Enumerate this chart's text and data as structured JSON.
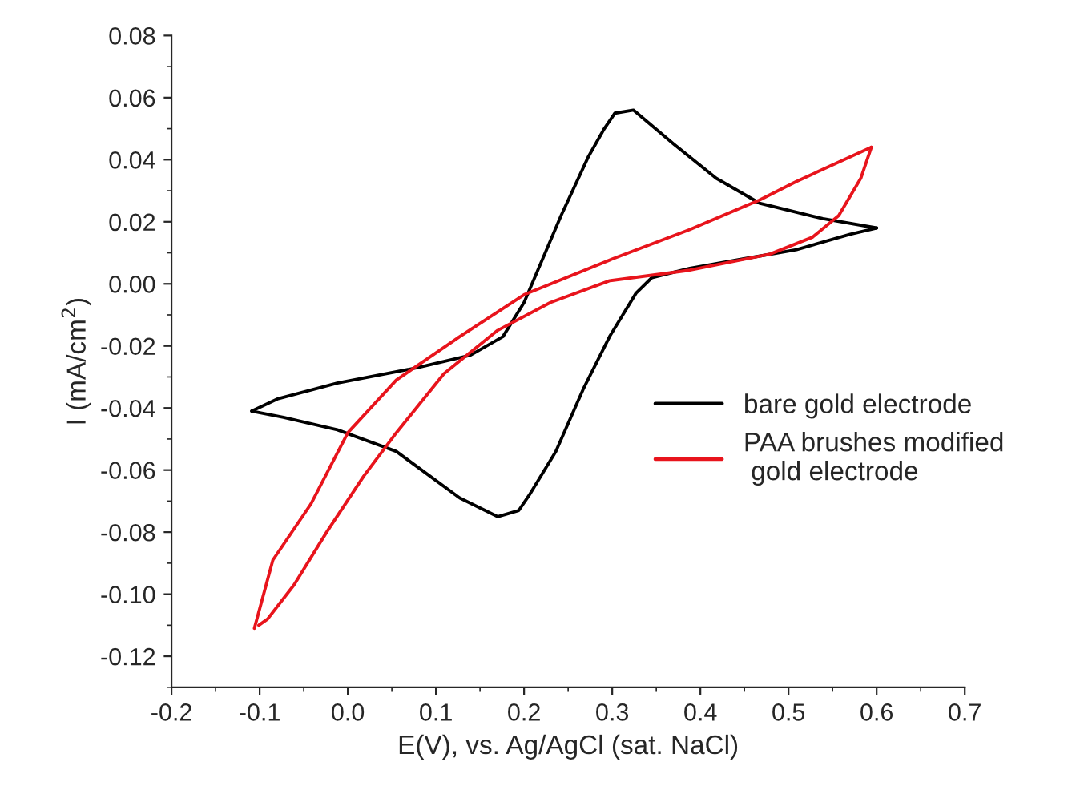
{
  "chart_data": {
    "type": "line",
    "xlabel": "E(V), vs. Ag/AgCl (sat. NaCl)",
    "ylabel": "I (mA/cm$^{2}$)",
    "xlim": [
      -0.2,
      0.7
    ],
    "ylim": [
      -0.13,
      0.08
    ],
    "xticks": [
      -0.2,
      -0.1,
      {
        "value": 0,
        "label": "0.0"
      },
      0.1,
      0.2,
      0.3,
      0.4,
      0.5,
      0.6,
      0.7
    ],
    "yticks": [
      {
        "value": 0.08,
        "label": "0.08"
      },
      {
        "value": 0.06,
        "label": "0.06"
      },
      {
        "value": 0.04,
        "label": "0.04"
      },
      {
        "value": 0.02,
        "label": "0.02"
      },
      {
        "value": 0.0,
        "label": "0.00"
      },
      {
        "value": -0.02,
        "label": "-0.02"
      },
      {
        "value": -0.04,
        "label": "-0.04"
      },
      {
        "value": -0.06,
        "label": "-0.06"
      },
      {
        "value": -0.08,
        "label": "-0.08"
      },
      {
        "value": -0.1,
        "label": "-0.10"
      },
      {
        "value": -0.12,
        "label": "-0.12"
      }
    ],
    "grid": false,
    "legend": "right",
    "marker": "none",
    "line_style": "solid",
    "series": [
      {
        "name": "bare gold electrode",
        "color": "#000000",
        "x": [
          -0.109,
          -0.079,
          -0.012,
          0.079,
          0.139,
          0.176,
          0.2,
          0.218,
          0.242,
          0.273,
          0.291,
          0.303,
          0.324,
          0.37,
          0.418,
          0.467,
          0.539,
          0.6
        ],
        "values": [
          -0.041,
          -0.037,
          -0.032,
          -0.027,
          -0.023,
          -0.017,
          -0.006,
          0.006,
          0.022,
          0.041,
          0.05,
          0.055,
          0.056,
          0.045,
          0.034,
          0.026,
          0.021,
          0.018
        ]
      },
      {
        "color": "#000000",
        "x": [
          0.6,
          0.57,
          0.509,
          0.448,
          0.388,
          0.345,
          0.327,
          0.297,
          0.267,
          0.236,
          0.206,
          0.194,
          0.17,
          0.127,
          0.055,
          -0.012,
          -0.073,
          -0.109
        ],
        "values": [
          0.018,
          0.016,
          0.011,
          0.008,
          0.005,
          0.002,
          -0.003,
          -0.017,
          -0.034,
          -0.054,
          -0.068,
          -0.073,
          -0.075,
          -0.069,
          -0.054,
          -0.047,
          -0.043,
          -0.041
        ]
      },
      {
        "name": "PAA brushes modified\n gold electrode",
        "color": "#e8141c",
        "x": [
          -0.106,
          -0.085,
          -0.042,
          0.0,
          0.055,
          0.127,
          0.2,
          0.3,
          0.388,
          0.467,
          0.509,
          0.594
        ],
        "values": [
          -0.111,
          -0.089,
          -0.071,
          -0.048,
          -0.031,
          -0.017,
          -0.0035,
          0.008,
          0.0175,
          0.027,
          0.033,
          0.044
        ]
      },
      {
        "color": "#e8141c",
        "x": [
          0.594,
          0.582,
          0.557,
          0.527,
          0.479,
          0.388,
          0.297,
          0.23,
          0.17,
          0.109,
          0.055,
          0.018,
          -0.024,
          -0.061,
          -0.091,
          -0.101
        ],
        "values": [
          0.044,
          0.034,
          0.022,
          0.015,
          0.0096,
          0.0044,
          0.001,
          -0.006,
          -0.015,
          -0.029,
          -0.048,
          -0.062,
          -0.08,
          -0.097,
          -0.108,
          -0.11
        ]
      }
    ]
  }
}
